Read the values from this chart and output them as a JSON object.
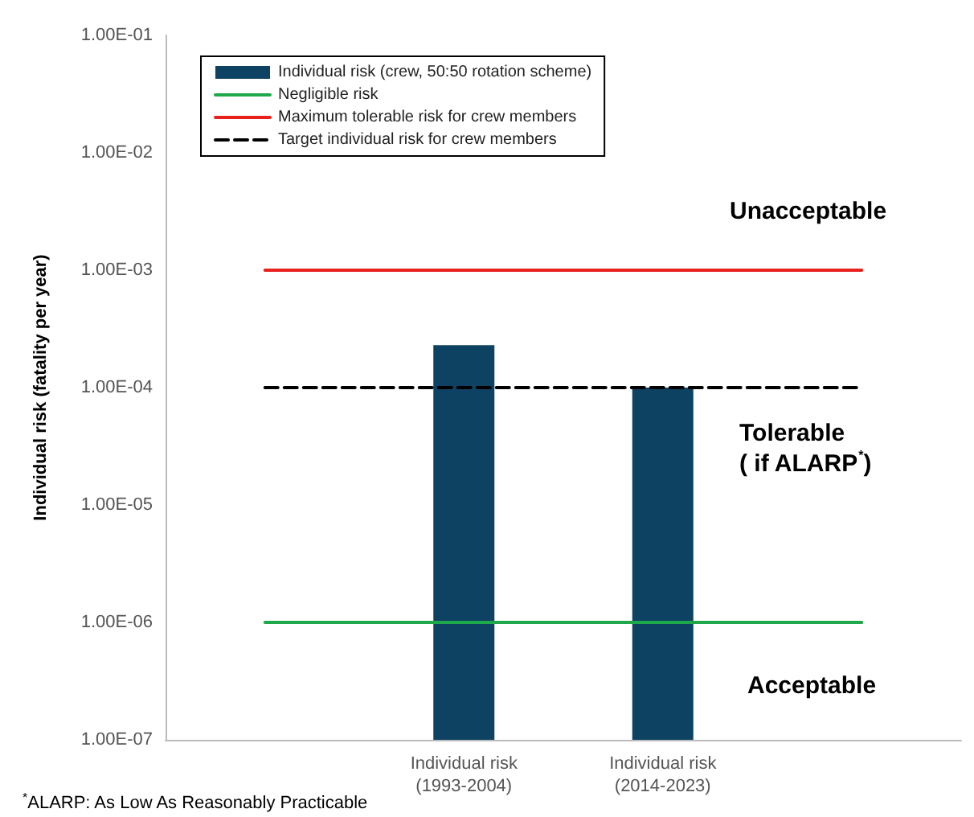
{
  "chart_data": {
    "type": "bar",
    "ylabel": "Individual risk (fatality per year)",
    "categories": [
      null,
      "Individual risk\n(1993-2004)",
      "Individual risk\n(2014-2023)",
      null
    ],
    "series": [
      {
        "name": "Individual risk (crew, 50:50 rotation scheme)",
        "color": "#0e4262",
        "values": [
          null,
          0.00023,
          0.0001,
          null
        ]
      },
      {
        "name": "Negligible risk",
        "type": "line",
        "color": "#1fa84a",
        "line_style": "solid",
        "values": [
          1e-06,
          1e-06,
          1e-06,
          1e-06
        ]
      },
      {
        "name": "Maximum tolerable risk for crew members",
        "type": "line",
        "color": "#e8201e",
        "line_style": "solid",
        "values": [
          0.001,
          0.001,
          0.001,
          0.001
        ]
      },
      {
        "name": "Target individual risk for crew members",
        "type": "line",
        "color": "#000000",
        "line_style": "dashed",
        "values": [
          0.0001,
          0.0001,
          0.0001,
          0.0001
        ]
      }
    ],
    "log": "y",
    "ylim": [
      1e-07,
      0.1
    ],
    "yticks": [
      {
        "value": 1e-07,
        "label": "1.00E-07"
      },
      {
        "value": 1e-06,
        "label": "1.00E-06"
      },
      {
        "value": 1e-05,
        "label": "1.00E-05"
      },
      {
        "value": 0.0001,
        "label": "1.00E-04"
      },
      {
        "value": 0.001,
        "label": "1.00E-03"
      },
      {
        "value": 0.01,
        "label": "1.00E-02"
      },
      {
        "value": 0.1,
        "label": "1.00E-01"
      }
    ],
    "grid": false,
    "legend": "top left",
    "marker": "none",
    "annotations": [
      "Unacceptable",
      "Tolerable\n( if ALARP$^{*}$)",
      "Acceptable",
      "$^{*}$ALARP: As Low As Reasonably Practicable"
    ]
  }
}
